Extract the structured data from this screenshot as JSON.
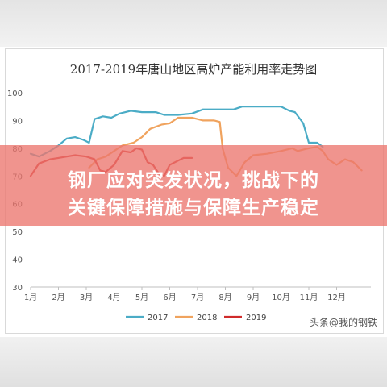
{
  "chart_data": {
    "type": "line",
    "title": "2017-2019年唐山地区高炉产能利用率走势图",
    "xlabel": "",
    "ylabel": "",
    "categories": [
      "1月",
      "2月",
      "3月",
      "4月",
      "5月",
      "6月",
      "7月",
      "8月",
      "9月",
      "10月",
      "11月",
      "12月"
    ],
    "ylim": [
      30,
      100
    ],
    "yticks": [
      30,
      40,
      50,
      60,
      70,
      80,
      90,
      100
    ],
    "grid": false,
    "legend_position": "bottom",
    "series": [
      {
        "name": "2017",
        "color": "#4bacc6",
        "points": [
          [
            1.0,
            78
          ],
          [
            1.3,
            77
          ],
          [
            1.7,
            79
          ],
          [
            2.0,
            81
          ],
          [
            2.3,
            83.5
          ],
          [
            2.6,
            84
          ],
          [
            2.9,
            83
          ],
          [
            3.1,
            82
          ],
          [
            3.3,
            90.5
          ],
          [
            3.6,
            91.5
          ],
          [
            3.9,
            91
          ],
          [
            4.2,
            92.5
          ],
          [
            4.6,
            93.5
          ],
          [
            5.0,
            93
          ],
          [
            5.5,
            93
          ],
          [
            5.8,
            92
          ],
          [
            6.3,
            92
          ],
          [
            6.8,
            92.5
          ],
          [
            7.2,
            94
          ],
          [
            7.7,
            94
          ],
          [
            8.3,
            94
          ],
          [
            8.6,
            95
          ],
          [
            9.0,
            95
          ],
          [
            9.5,
            95
          ],
          [
            10.0,
            95
          ],
          [
            10.3,
            93.5
          ],
          [
            10.5,
            93
          ],
          [
            10.8,
            89
          ],
          [
            11.0,
            82
          ],
          [
            11.3,
            82
          ],
          [
            11.5,
            80.5
          ]
        ]
      },
      {
        "name": "2018",
        "color": "#f0a35e",
        "points": [
          [
            3.1,
            73
          ],
          [
            3.4,
            76
          ],
          [
            3.7,
            77
          ],
          [
            4.0,
            79
          ],
          [
            4.3,
            81
          ],
          [
            4.7,
            82
          ],
          [
            5.0,
            84
          ],
          [
            5.3,
            87
          ],
          [
            5.7,
            88.5
          ],
          [
            6.0,
            89
          ],
          [
            6.3,
            91
          ],
          [
            6.8,
            91
          ],
          [
            7.0,
            90.5
          ],
          [
            7.2,
            90
          ],
          [
            7.6,
            90
          ],
          [
            7.8,
            89.5
          ],
          [
            7.9,
            80
          ],
          [
            8.1,
            73
          ],
          [
            8.4,
            70
          ],
          [
            8.7,
            75
          ],
          [
            9.0,
            77.5
          ],
          [
            9.5,
            78
          ],
          [
            10.0,
            79
          ],
          [
            10.4,
            80
          ],
          [
            10.6,
            79
          ],
          [
            11.0,
            80
          ],
          [
            11.3,
            80.5
          ],
          [
            11.5,
            79
          ],
          [
            11.7,
            76
          ],
          [
            12.0,
            74
          ],
          [
            12.3,
            76
          ],
          [
            12.6,
            75
          ],
          [
            12.9,
            72
          ]
        ]
      },
      {
        "name": "2019",
        "color": "#d02b2b",
        "points": [
          [
            1.0,
            70
          ],
          [
            1.3,
            74.5
          ],
          [
            1.7,
            76
          ],
          [
            2.0,
            76.5
          ],
          [
            2.3,
            77
          ],
          [
            2.6,
            77.5
          ],
          [
            3.0,
            77
          ],
          [
            3.3,
            76
          ],
          [
            3.5,
            72
          ],
          [
            3.7,
            71.5
          ],
          [
            4.0,
            74
          ],
          [
            4.3,
            79
          ],
          [
            4.6,
            78.5
          ],
          [
            4.8,
            80
          ],
          [
            5.0,
            79.5
          ],
          [
            5.2,
            75
          ],
          [
            5.4,
            74
          ],
          [
            5.6,
            71
          ],
          [
            5.8,
            70
          ],
          [
            6.0,
            74
          ],
          [
            6.3,
            75.5
          ],
          [
            6.5,
            76.5
          ],
          [
            6.8,
            76.5
          ]
        ]
      }
    ]
  },
  "banner": {
    "line1": "钢厂应对突发状况，挑战下的",
    "line2": "关键保障措施与保障生产稳定"
  },
  "watermark": "头条@我的钢铁"
}
